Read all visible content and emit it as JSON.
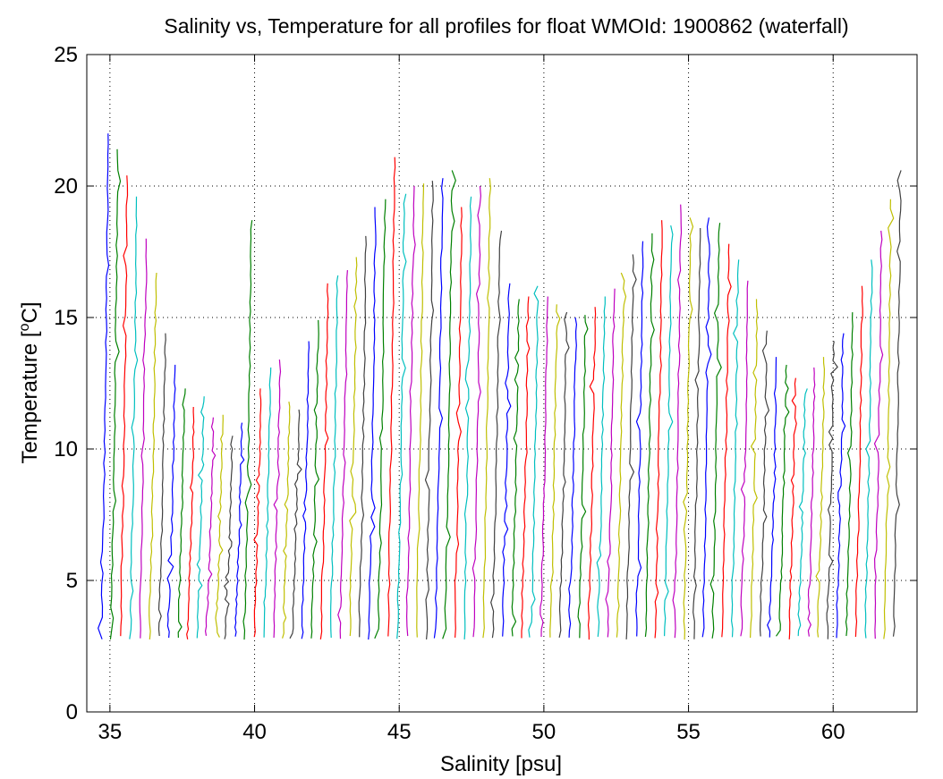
{
  "chart_data": {
    "type": "line",
    "title": "Salinity vs, Temperature for all profiles for float WMOId: 1900862 (waterfall)",
    "xlabel": "Salinity [psu]",
    "ylabel_main": "Temperature [",
    "ylabel_sup": "o",
    "ylabel_unit": "C]",
    "xlim": [
      34.2,
      62.9
    ],
    "ylim": [
      0,
      25
    ],
    "x_ticks": [
      35,
      40,
      45,
      50,
      55,
      60
    ],
    "x_tick_labels": [
      "35",
      "40",
      "45",
      "50",
      "55",
      "60"
    ],
    "y_ticks": [
      0,
      5,
      10,
      15,
      20,
      25
    ],
    "y_tick_labels": [
      "0",
      "5",
      "10",
      "15",
      "20",
      "25"
    ],
    "grid": true,
    "line_colors": [
      "#0000ff",
      "#008000",
      "#ff0000",
      "#00bfbf",
      "#bf00bf",
      "#bfbf00",
      "#404040"
    ],
    "profile_count": 84,
    "profile_offset": 0.33,
    "base_salinity": 34.64,
    "bottom_temperature": 2.75,
    "profile_tops": [
      22.0,
      21.4,
      20.4,
      19.6,
      18.0,
      16.7,
      14.4,
      13.2,
      12.3,
      11.6,
      12.0,
      11.2,
      11.3,
      10.5,
      11.0,
      18.7,
      12.3,
      13.1,
      13.4,
      11.8,
      11.5,
      14.1,
      14.9,
      16.3,
      16.6,
      16.8,
      17.3,
      18.1,
      19.2,
      19.5,
      21.1,
      19.7,
      20.0,
      20.1,
      20.2,
      20.3,
      20.6,
      19.2,
      19.6,
      20.0,
      20.3,
      18.3,
      16.3,
      15.7,
      15.8,
      16.2,
      15.8,
      15.5,
      15.2,
      15.0,
      15.1,
      15.4,
      15.8,
      16.1,
      16.7,
      17.4,
      17.9,
      18.2,
      18.7,
      18.5,
      19.3,
      18.8,
      18.4,
      18.8,
      18.6,
      17.8,
      17.2,
      16.4,
      15.7,
      14.5,
      13.5,
      13.2,
      12.7,
      12.3,
      13.1,
      13.5,
      14.1,
      14.4,
      15.2,
      16.2,
      17.2,
      18.3,
      19.5,
      20.6
    ]
  }
}
